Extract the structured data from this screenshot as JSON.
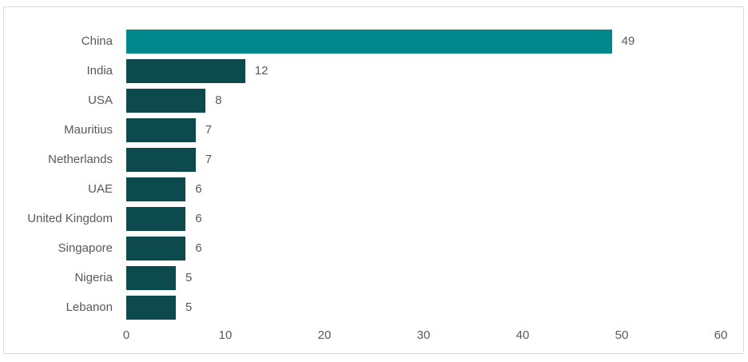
{
  "chart_data": {
    "type": "bar",
    "orientation": "horizontal",
    "title": "",
    "xlabel": "",
    "ylabel": "",
    "categories": [
      "China",
      "India",
      "USA",
      "Mauritius",
      "Netherlands",
      "UAE",
      "United Kingdom",
      "Singapore",
      "Nigeria",
      "Lebanon"
    ],
    "values": [
      49,
      12,
      8,
      7,
      7,
      6,
      6,
      6,
      5,
      5
    ],
    "data_labels": [
      "49",
      "12",
      "8",
      "7",
      "7",
      "6",
      "6",
      "6",
      "5",
      "5"
    ],
    "xlim": [
      0,
      60
    ],
    "x_ticks": [
      "0",
      "10",
      "20",
      "30",
      "40",
      "50",
      "60"
    ],
    "grid": false,
    "legend": false,
    "bar_colors": [
      "#00888D",
      "#0D4A4E",
      "#0D4A4E",
      "#0D4A4E",
      "#0D4A4E",
      "#0D4A4E",
      "#0D4A4E",
      "#0D4A4E",
      "#0D4A4E",
      "#0D4A4E"
    ],
    "highlight_color": "#00888D",
    "base_color": "#0D4A4E",
    "category_label_color": "#595959",
    "value_label_color": "#595959",
    "tick_label_color": "#595959",
    "frame_border_color": "#D9D9D9",
    "background_color": "#FFFFFF"
  }
}
